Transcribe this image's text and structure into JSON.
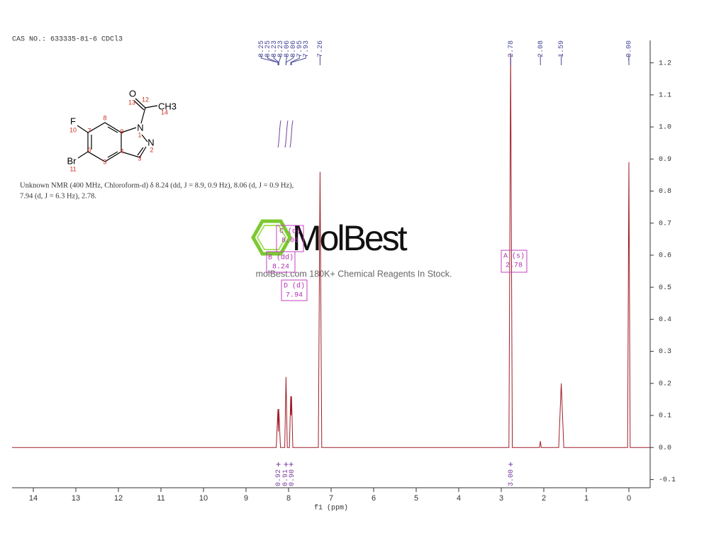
{
  "header": "CAS NO.: 633335-81-6 CDCl3",
  "description": [
    "Unknown NMR (400 MHz, Chloroform-d) δ 8.24 (dd, J = 8.9, 0.9 Hz), 8.06 (d, J = 0.9 Hz),",
    "7.94 (d, J = 6.3 Hz), 2.78."
  ],
  "molecule": {
    "atoms": [
      "O",
      "CH3",
      "F",
      "N",
      "N",
      "Br"
    ],
    "numbering": [
      "13",
      "12",
      "14",
      "10",
      "7",
      "8",
      "9",
      "1",
      "2",
      "3",
      "4",
      "5",
      "6",
      "11"
    ]
  },
  "watermark": {
    "logo": "MolBest",
    "tagline": "molBest.com 180K+ Chemical Reagents In Stock."
  },
  "chart_data": {
    "type": "line",
    "xlabel": "f1 (ppm)",
    "color": "#a01c28",
    "x": [
      14.5,
      8.29,
      8.25,
      8.24,
      8.23,
      8.19,
      8.09,
      8.06,
      8.03,
      7.98,
      7.95,
      7.94,
      7.93,
      7.9,
      7.3,
      7.26,
      7.22,
      2.82,
      2.78,
      2.74,
      2.1,
      2.08,
      2.06,
      1.65,
      1.59,
      1.53,
      0.03,
      0.0,
      -0.03,
      -0.5
    ],
    "values": [
      0,
      0,
      0.12,
      0.05,
      0.12,
      0,
      0,
      0.22,
      0,
      0,
      0.16,
      0.1,
      0.16,
      0,
      0,
      0.86,
      0,
      0,
      1.23,
      0,
      0,
      0.02,
      0,
      0,
      0.2,
      0,
      0,
      0.89,
      0,
      0
    ],
    "xlim": [
      14.5,
      -0.5
    ],
    "xticks": [
      14,
      13,
      12,
      11,
      10,
      9,
      8,
      7,
      6,
      5,
      4,
      3,
      2,
      1,
      0
    ],
    "ylim": [
      -0.13,
      1.27
    ],
    "yticks": [
      -0.1,
      {
        "value": 0,
        "label": "0.0"
      },
      0.1,
      0.2,
      0.3,
      0.4,
      0.5,
      0.6,
      0.7,
      0.8,
      0.9,
      {
        "value": 1,
        "label": "1.0"
      },
      1.1,
      1.2
    ],
    "peak_labels": [
      "8.25",
      "8.25",
      "8.23",
      "8.23",
      "8.06",
      "8.06",
      "7.95",
      "7.93",
      "7.26",
      "2.78",
      "2.08",
      "1.59",
      "-0.00"
    ],
    "integrals": {
      "x": [
        8.24,
        8.06,
        7.94,
        2.78
      ],
      "labels": [
        "0.92",
        "0.91",
        "0.90",
        "3.00"
      ]
    },
    "multiplets": [
      {
        "name": "C (d)",
        "shift": "8.06"
      },
      {
        "name": "B (dd)",
        "shift": "8.24"
      },
      {
        "name": "D (d)",
        "shift": "7.94"
      },
      {
        "name": "A (s)",
        "shift": "2.78"
      }
    ]
  }
}
